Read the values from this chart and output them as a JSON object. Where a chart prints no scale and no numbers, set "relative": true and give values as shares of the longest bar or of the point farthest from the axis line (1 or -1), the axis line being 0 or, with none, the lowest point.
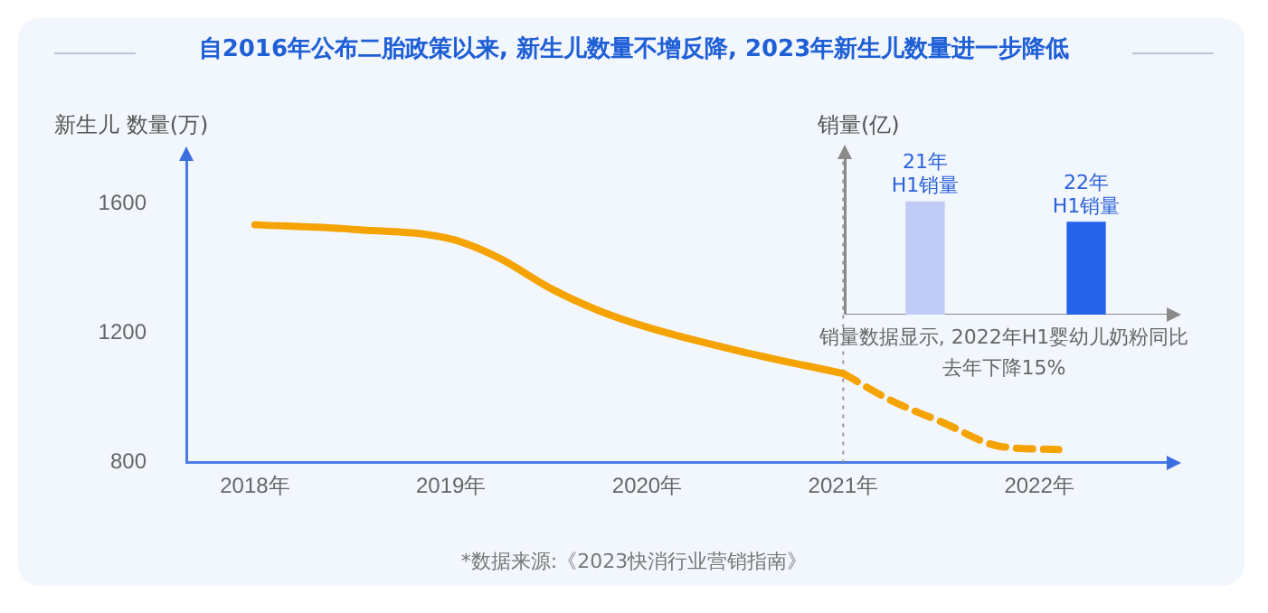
{
  "chart_data": [
    {
      "type": "line",
      "title": "自2016年公布二胎政策以来, 新生儿数量不增反降, 2023年新生儿数量进一步降低",
      "ylabel": "新生儿 数量(万)",
      "xlim": [
        2017.65,
        2022.65
      ],
      "xticks": [
        {
          "value": 2018,
          "label": "2018年"
        },
        {
          "value": 2019,
          "label": "2019年"
        },
        {
          "value": 2020,
          "label": "2020年"
        },
        {
          "value": 2021,
          "label": "2021年"
        },
        {
          "value": 2022,
          "label": "2022年"
        }
      ],
      "ylim": [
        800,
        1730
      ],
      "yticks": [
        800,
        1200,
        1600
      ],
      "grid": false,
      "legend": false,
      "marker": "none",
      "series": [
        {
          "color": "#f5a300",
          "line_style": "solid",
          "x": [
            2018,
            2018.5,
            2019,
            2019.25,
            2019.5,
            2019.75,
            2020,
            2020.5,
            2021
          ],
          "values": [
            1534,
            1520,
            1490,
            1430,
            1340,
            1270,
            1218,
            1140,
            1075
          ]
        },
        {
          "color": "#f5a300",
          "line_style": "dashed",
          "x": [
            2021,
            2021.25,
            2021.5,
            2021.8,
            2022.1
          ],
          "values": [
            1075,
            990,
            926,
            850,
            840
          ]
        }
      ],
      "ref_lines": [
        {
          "axis": "x",
          "value": 2021,
          "color": "#9a9a9a",
          "line_style": "dotted"
        }
      ],
      "annotations": [
        "*数据来源:《2023快消行业营销指南》"
      ]
    },
    {
      "type": "bar",
      "relative": true,
      "ylabel": "销量(亿)",
      "categories": [
        "21年\nH1销量",
        "22年\nH1销量"
      ],
      "values": [
        1,
        0.82
      ],
      "colors": [
        "#c0cbf8",
        "#2563eb"
      ],
      "grid": false,
      "legend": false,
      "annotations": [
        "销量数据显示, 2022年H1婴幼儿奶粉同比去年下降15%"
      ]
    }
  ]
}
